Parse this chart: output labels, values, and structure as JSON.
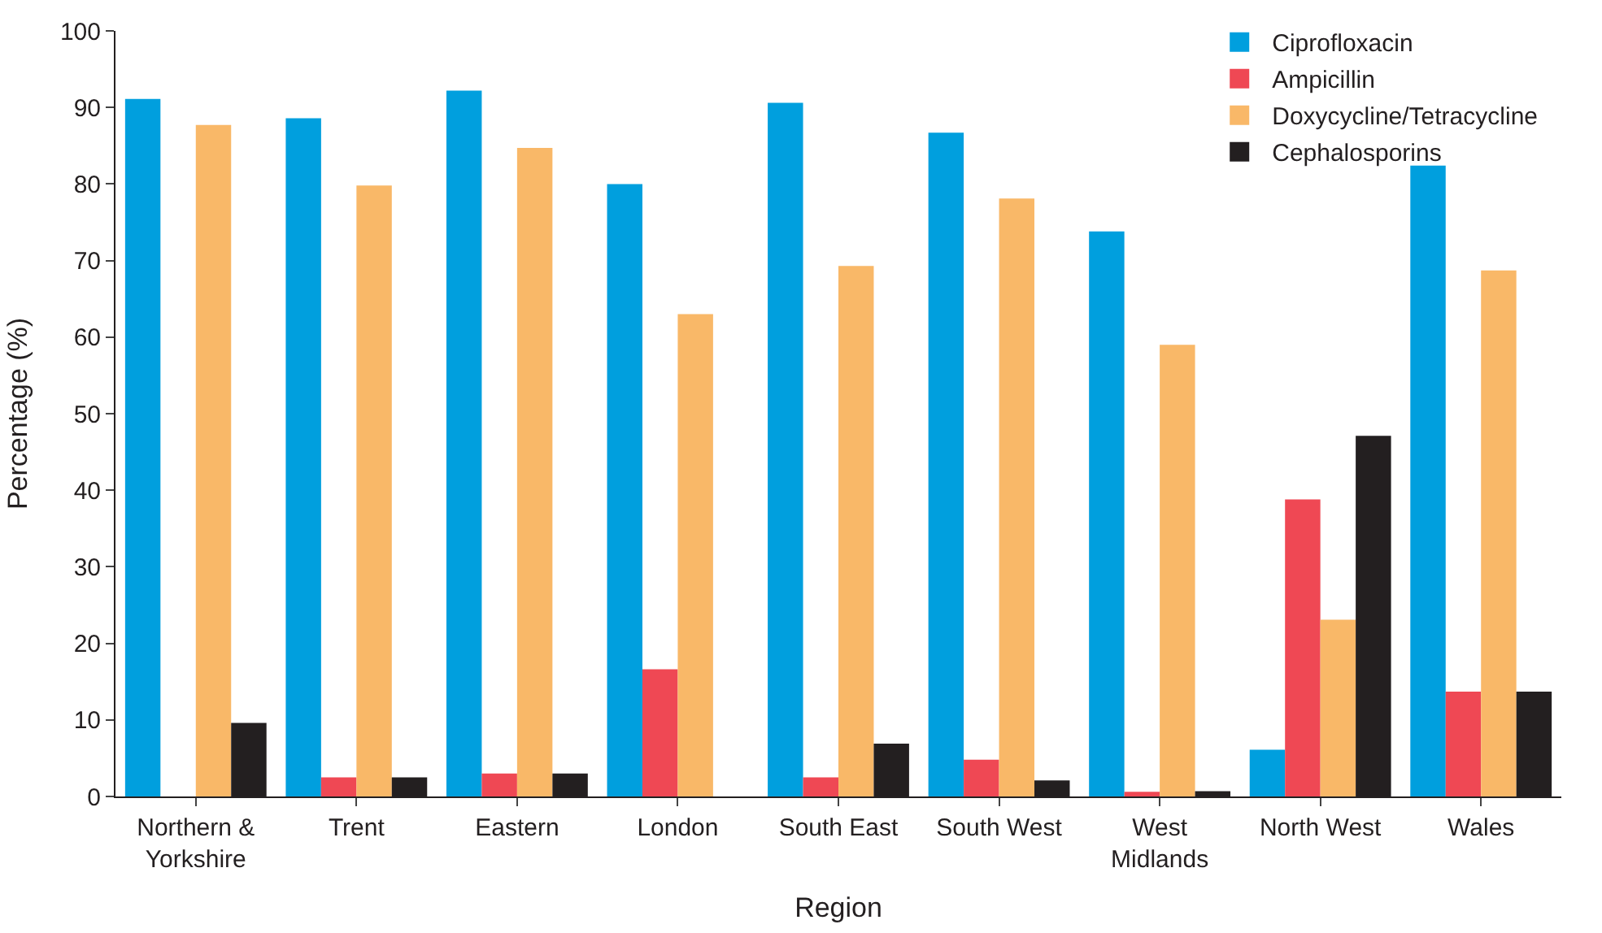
{
  "chart_data": {
    "type": "bar",
    "xlabel": "Region",
    "ylabel": "Percentage (%)",
    "categories": [
      "Northern & Yorkshire",
      "Trent",
      "Eastern",
      "London",
      "South East",
      "South West",
      "West Midlands",
      "North West",
      "Wales"
    ],
    "series": [
      {
        "name": "Ciprofloxacin",
        "color": "#009fde",
        "values": [
          91.1,
          88.6,
          92.2,
          80.0,
          90.6,
          86.7,
          73.8,
          6.1,
          82.4
        ]
      },
      {
        "name": "Ampicillin",
        "color": "#ef4854",
        "values": [
          0,
          2.5,
          3.0,
          16.6,
          2.5,
          4.8,
          0.6,
          38.8,
          13.7
        ]
      },
      {
        "name": "Doxycycline/Tetracycline",
        "color": "#f9b868",
        "values": [
          87.7,
          79.8,
          84.7,
          63.0,
          69.3,
          78.1,
          59.0,
          23.1,
          68.7
        ]
      },
      {
        "name": "Cephalosporins",
        "color": "#231f20",
        "values": [
          9.6,
          2.5,
          3.0,
          0,
          6.9,
          2.1,
          0.7,
          47.1,
          13.7
        ]
      }
    ],
    "ylim": [
      0,
      100
    ],
    "yticks": [
      0,
      10,
      20,
      30,
      40,
      50,
      60,
      70,
      80,
      90,
      100
    ],
    "legend": "top right"
  }
}
